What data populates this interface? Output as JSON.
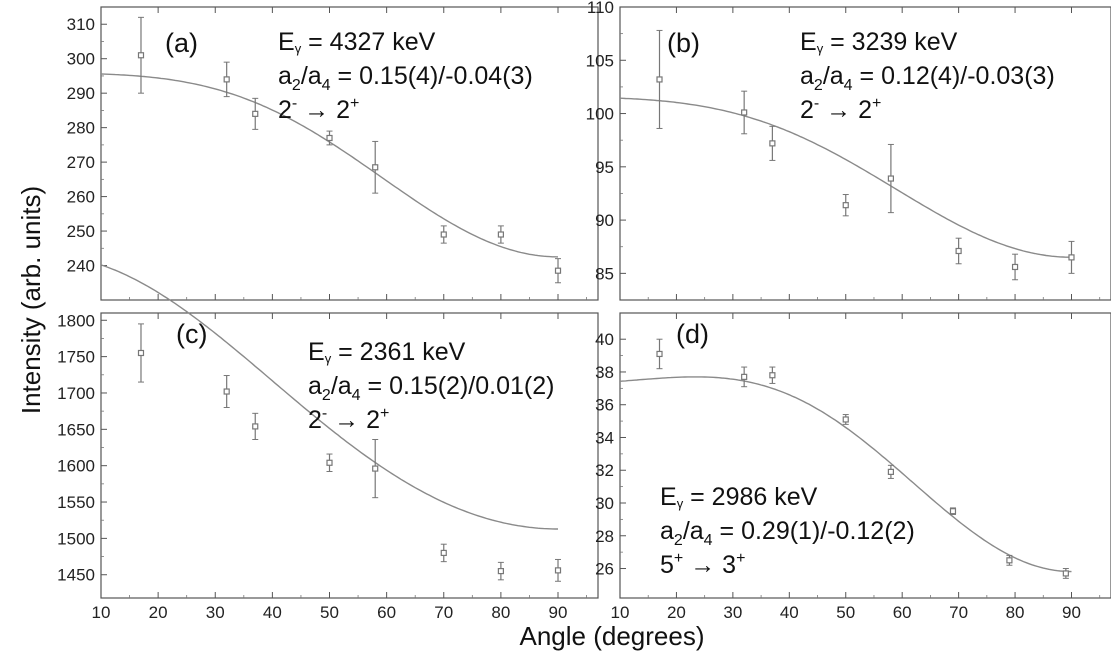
{
  "figure": {
    "ylabel": "Intensity (arb. units)",
    "xlabel": "Angle (degrees)"
  },
  "chart_data": [
    {
      "type": "scatter",
      "panel_label": "(a)",
      "energy": {
        "symbol": "E",
        "sub": "γ",
        "rest": " = 4327 keV"
      },
      "coeffs": {
        "a": "a",
        "sub1": "2",
        "mid": "/a",
        "sub2": "4",
        "rest": " = 0.15(4)/-0.04(3)"
      },
      "transition": {
        "from": "2",
        "from_sup": "-",
        "arrow": " → ",
        "to": "2",
        "to_sup": "+"
      },
      "xlim": [
        10,
        97
      ],
      "ylim": [
        230,
        315
      ],
      "xticks": [],
      "yticks": [
        240,
        250,
        260,
        270,
        280,
        290,
        300,
        310
      ],
      "x": [
        17,
        32,
        37,
        50,
        58,
        70,
        80,
        90
      ],
      "y": [
        301,
        294,
        284,
        277,
        268.5,
        249,
        249,
        238.5
      ],
      "yerr": [
        11,
        5,
        4.5,
        2,
        7.5,
        2.5,
        2.5,
        3.5
      ],
      "fit": {
        "a0": 266.5,
        "a2": 0.15,
        "a4": -0.04
      }
    },
    {
      "type": "scatter",
      "panel_label": "(b)",
      "energy": {
        "symbol": "E",
        "sub": "γ",
        "rest": " = 3239 keV"
      },
      "coeffs": {
        "a": "a",
        "sub1": "2",
        "mid": "/a",
        "sub2": "4",
        "rest": " = 0.12(4)/-0.03(3)"
      },
      "transition": {
        "from": "2",
        "from_sup": "-",
        "arrow": " → ",
        "to": "2",
        "to_sup": "+"
      },
      "xlim": [
        10,
        97
      ],
      "ylim": [
        82.5,
        110
      ],
      "xticks": [],
      "yticks": [
        85,
        90,
        95,
        100,
        105,
        110
      ],
      "x": [
        17,
        32,
        37,
        50,
        58,
        70,
        80,
        90
      ],
      "y": [
        103.2,
        100.1,
        97.2,
        91.4,
        93.9,
        87.1,
        85.6,
        86.5
      ],
      "yerr": [
        4.6,
        2,
        1.6,
        1,
        3.2,
        1.2,
        1.2,
        1.5
      ],
      "fit": {
        "a0": 93.15,
        "a2": 0.12,
        "a4": -0.03
      }
    },
    {
      "type": "scatter",
      "panel_label": "(c)",
      "energy": {
        "symbol": "E",
        "sub": "γ",
        "rest": " = 2361 keV"
      },
      "coeffs": {
        "a": "a",
        "sub1": "2",
        "mid": "/a",
        "sub2": "4",
        "rest": " = 0.15(2)/0.01(2)"
      },
      "transition": {
        "from": "2",
        "from_sup": "-",
        "arrow": " → ",
        "to": "2",
        "to_sup": "+"
      },
      "xlim": [
        10,
        97
      ],
      "ylim": [
        1418,
        1810
      ],
      "xticks": [
        10,
        20,
        30,
        40,
        50,
        60,
        70,
        80,
        90
      ],
      "yticks": [
        1450,
        1500,
        1550,
        1600,
        1650,
        1700,
        1750,
        1800
      ],
      "x": [
        17,
        32,
        37,
        50,
        58,
        70,
        80,
        90
      ],
      "y": [
        1755,
        1702,
        1654,
        1604,
        1596,
        1480,
        1455,
        1456
      ],
      "yerr": [
        40,
        22,
        18,
        12,
        40,
        12,
        12,
        15
      ],
      "fit": {
        "a0": 1629,
        "a2": 0.15,
        "a4": 0.01
      }
    },
    {
      "type": "scatter",
      "panel_label": "(d)",
      "energy": {
        "symbol": "E",
        "sub": "γ",
        "rest": " = 2986 keV"
      },
      "coeffs": {
        "a": "a",
        "sub1": "2",
        "mid": "/a",
        "sub2": "4",
        "rest": " = 0.29(1)/-0.12(2)"
      },
      "transition": {
        "from": "5",
        "from_sup": "+",
        "arrow": " → ",
        "to": "3",
        "to_sup": "+"
      },
      "xlim": [
        10,
        97
      ],
      "ylim": [
        24.2,
        41.6
      ],
      "xticks": [
        10,
        20,
        30,
        40,
        50,
        60,
        70,
        80,
        90
      ],
      "yticks": [
        26,
        28,
        30,
        32,
        34,
        36,
        38,
        40
      ],
      "x": [
        17,
        32,
        37,
        50,
        58,
        69,
        79,
        89
      ],
      "y": [
        39.1,
        37.7,
        37.8,
        35.1,
        31.9,
        29.5,
        26.5,
        25.7
      ],
      "yerr": [
        0.9,
        0.6,
        0.5,
        0.3,
        0.4,
        0.2,
        0.3,
        0.3
      ],
      "fit": {
        "a0": 31.87,
        "a2": 0.29,
        "a4": -0.12
      }
    }
  ]
}
